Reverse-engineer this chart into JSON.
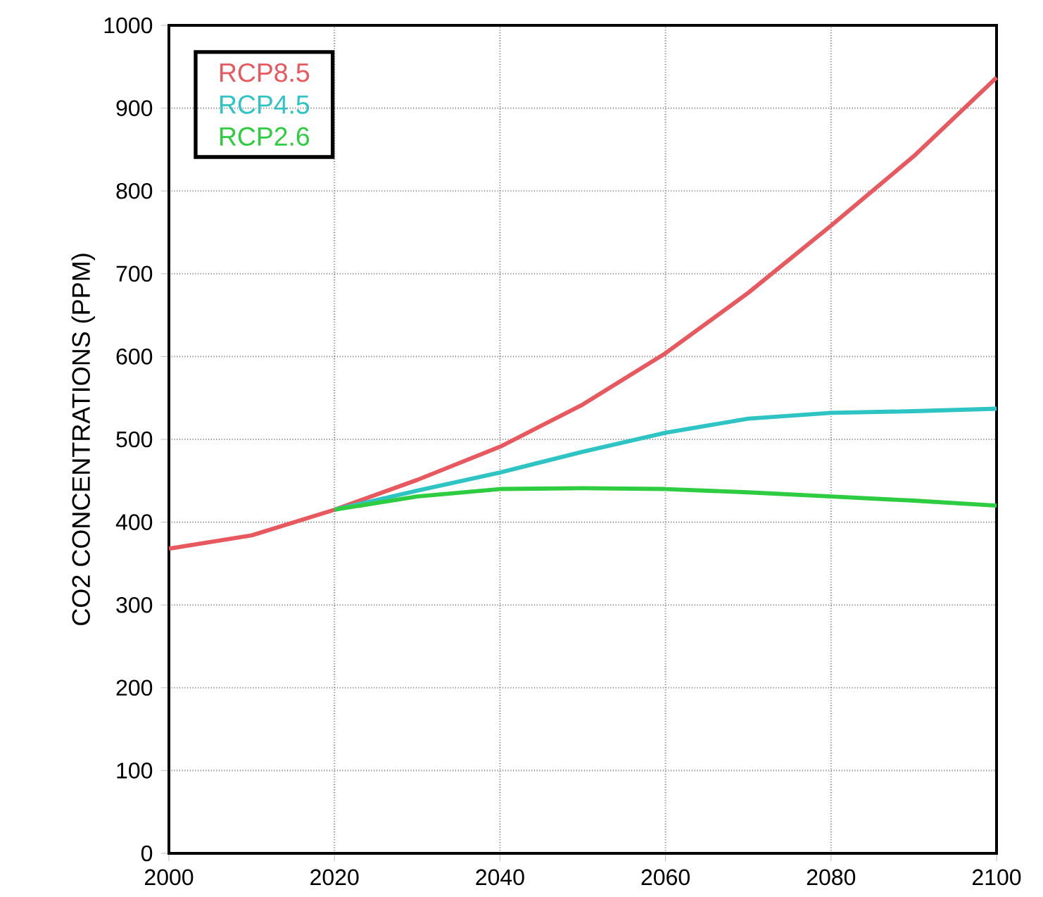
{
  "chart_data": {
    "type": "line",
    "ylabel": "CO2 CONCENTRATIONS (PPM)",
    "x": [
      2000,
      2010,
      2020,
      2030,
      2040,
      2050,
      2060,
      2070,
      2080,
      2090,
      2100
    ],
    "series": [
      {
        "name": "RCP8.5",
        "color": "#e8585f",
        "values": [
          368,
          384,
          415,
          451,
          491,
          542,
          604,
          677,
          758,
          842,
          937
        ]
      },
      {
        "name": "RCP4.5",
        "color": "#2ec4c4",
        "values": [
          null,
          null,
          415,
          438,
          460,
          485,
          508,
          525,
          532,
          534,
          537
        ]
      },
      {
        "name": "RCP2.6",
        "color": "#2ecc40",
        "values": [
          null,
          null,
          415,
          431,
          440,
          441,
          440,
          436,
          431,
          426,
          420
        ]
      }
    ],
    "xlim": [
      2000,
      2100
    ],
    "ylim": [
      0,
      1000
    ],
    "xticks": [
      2000,
      2020,
      2040,
      2060,
      2080,
      2100
    ],
    "yticks": [
      0,
      100,
      200,
      300,
      400,
      500,
      600,
      700,
      800,
      900,
      1000
    ],
    "grid": true,
    "legend": "top left",
    "marker": "none",
    "line_style": "solid"
  }
}
